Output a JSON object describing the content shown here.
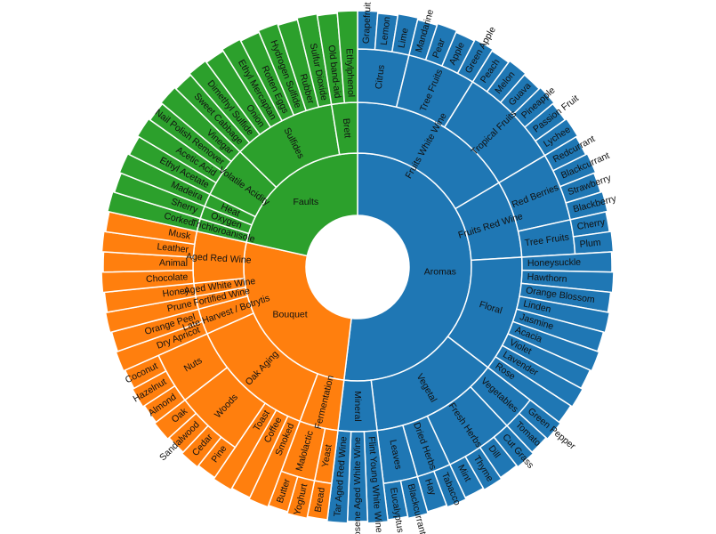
{
  "chart_data": {
    "type": "sunburst",
    "colors": {
      "Aromas": "#1f77b4",
      "Bouquet": "#ff7f0e",
      "Faults": "#2ca02c"
    },
    "tree": [
      {
        "name": "Aromas",
        "color": "#1f77b4",
        "children": [
          {
            "name": "Fruits White Wine",
            "children": [
              {
                "name": "Citrus",
                "children": [
                  {
                    "name": "Grapefruit",
                    "value": 1
                  },
                  {
                    "name": "Lemon",
                    "value": 1
                  },
                  {
                    "name": "Lime",
                    "value": 1
                  }
                ]
              },
              {
                "name": "Tree Fruits",
                "children": [
                  {
                    "name": "Mandarine",
                    "value": 1
                  },
                  {
                    "name": "Pear",
                    "value": 1
                  },
                  {
                    "name": "Apple",
                    "value": 1
                  },
                  {
                    "name": "Green Apple",
                    "value": 1
                  }
                ]
              },
              {
                "name": "Tropical Fruits",
                "children": [
                  {
                    "name": "Peach",
                    "value": 1
                  },
                  {
                    "name": "Melon",
                    "value": 1
                  },
                  {
                    "name": "Guava",
                    "value": 1
                  },
                  {
                    "name": "Pineapple",
                    "value": 1
                  },
                  {
                    "name": "Passion Fruit",
                    "value": 1
                  },
                  {
                    "name": "Lychee",
                    "value": 1
                  }
                ]
              }
            ]
          },
          {
            "name": "Fruits Red Wine",
            "children": [
              {
                "name": "Red Berries",
                "children": [
                  {
                    "name": "Redcurrant",
                    "value": 1
                  },
                  {
                    "name": "Blackcurrant",
                    "value": 1
                  },
                  {
                    "name": "Strawberry",
                    "value": 1
                  },
                  {
                    "name": "Blackberry",
                    "value": 1
                  }
                ]
              },
              {
                "name": "Tree Fruits",
                "children": [
                  {
                    "name": "Cherry",
                    "value": 1
                  },
                  {
                    "name": "Plum",
                    "value": 1
                  }
                ]
              }
            ]
          },
          {
            "name": "Floral",
            "children": [
              {
                "name": "Honeysuckle",
                "value": 1
              },
              {
                "name": "Hawthorn",
                "value": 1
              },
              {
                "name": "Orange Blossom",
                "value": 1
              },
              {
                "name": "Linden",
                "value": 1
              },
              {
                "name": "Jasmine",
                "value": 1
              },
              {
                "name": "Acacia",
                "value": 1
              },
              {
                "name": "Violet",
                "value": 1
              },
              {
                "name": "Lavender",
                "value": 1
              },
              {
                "name": "Rose",
                "value": 1
              }
            ]
          },
          {
            "name": "Vegetal",
            "children": [
              {
                "name": "Vegetables",
                "children": [
                  {
                    "name": "Green Pepper",
                    "value": 1
                  },
                  {
                    "name": "Tomato",
                    "value": 1
                  }
                ]
              },
              {
                "name": "Fresh Herbs",
                "children": [
                  {
                    "name": "Cut Grass",
                    "value": 1
                  },
                  {
                    "name": "Dill",
                    "value": 1
                  },
                  {
                    "name": "Thyme",
                    "value": 1
                  },
                  {
                    "name": "Mint",
                    "value": 1
                  }
                ]
              },
              {
                "name": "Dried Herbs",
                "children": [
                  {
                    "name": "Tabacco",
                    "value": 1
                  },
                  {
                    "name": "Hay",
                    "value": 1
                  }
                ]
              },
              {
                "name": "Leaves",
                "children": [
                  {
                    "name": "Blackcurrant Leaf",
                    "value": 1
                  },
                  {
                    "name": "Eucalyptus",
                    "value": 1
                  }
                ]
              }
            ]
          },
          {
            "name": "Mineral",
            "children": [
              {
                "name": "Flint Young White Wine",
                "value": 1
              },
              {
                "name": "Kerosene Aged White Wine",
                "value": 1
              },
              {
                "name": "Tar Aged Red Wine",
                "value": 1
              }
            ]
          }
        ]
      },
      {
        "name": "Bouquet",
        "color": "#ff7f0e",
        "children": [
          {
            "name": "Fermentation",
            "children": [
              {
                "name": "Yeast",
                "children": [
                  {
                    "name": "Bread",
                    "value": 1
                  }
                ]
              },
              {
                "name": "Malolactic",
                "children": [
                  {
                    "name": "Yoghurt",
                    "value": 1
                  },
                  {
                    "name": "Butter",
                    "value": 1
                  }
                ]
              }
            ]
          },
          {
            "name": "Oak Aging",
            "children": [
              {
                "name": "Smoked",
                "value": 1
              },
              {
                "name": "Coffee",
                "value": 1
              },
              {
                "name": "Toast",
                "value": 1
              },
              {
                "name": "Woods",
                "children": [
                  {
                    "name": "Pine",
                    "value": 1
                  },
                  {
                    "name": "Cedar",
                    "value": 1
                  },
                  {
                    "name": "Sandalwood",
                    "value": 1
                  },
                  {
                    "name": "Oak",
                    "value": 1
                  }
                ]
              },
              {
                "name": "Nuts",
                "children": [
                  {
                    "name": "Almond",
                    "value": 1
                  },
                  {
                    "name": "Hazelnut",
                    "value": 1
                  },
                  {
                    "name": "Coconut",
                    "value": 1
                  }
                ]
              }
            ]
          },
          {
            "name": "Late Harvest / Botrytis",
            "children": [
              {
                "name": "Dry Apricot",
                "value": 1
              },
              {
                "name": "Orange Peel",
                "value": 1
              }
            ]
          },
          {
            "name": "Fortified Wine",
            "children": [
              {
                "name": "Prune",
                "value": 1
              }
            ]
          },
          {
            "name": "Aged White Wine",
            "children": [
              {
                "name": "Honey",
                "value": 1
              }
            ]
          },
          {
            "name": "Aged Red Wine",
            "children": [
              {
                "name": "Chocolate",
                "value": 1
              },
              {
                "name": "Animal",
                "value": 1
              },
              {
                "name": "Leather",
                "value": 1
              },
              {
                "name": "Musk",
                "value": 1
              }
            ]
          }
        ]
      },
      {
        "name": "Faults",
        "color": "#2ca02c",
        "children": [
          {
            "name": "Trichloroanisole",
            "children": [
              {
                "name": "Corked",
                "value": 1
              }
            ]
          },
          {
            "name": "Oxygen",
            "children": [
              {
                "name": "Sherry",
                "value": 1
              }
            ]
          },
          {
            "name": "Heat",
            "children": [
              {
                "name": "Madeira",
                "value": 1
              }
            ]
          },
          {
            "name": "Volatile Acidity",
            "children": [
              {
                "name": "Ethyl Acetate",
                "value": 1
              },
              {
                "name": "Acetic Acid",
                "value": 1
              },
              {
                "name": "Nail Polish Remover",
                "value": 1
              },
              {
                "name": "Vinegar",
                "value": 1
              }
            ]
          },
          {
            "name": "Sulfides",
            "children": [
              {
                "name": "Sweet Cabbage",
                "value": 1
              },
              {
                "name": "Dimethyl Sulfide",
                "value": 1
              },
              {
                "name": "Onion",
                "value": 1
              },
              {
                "name": "Ethyl Mercaptan",
                "value": 1
              },
              {
                "name": "Rotten Eggs",
                "value": 1
              },
              {
                "name": "Hydrogen Sulfide",
                "value": 1
              },
              {
                "name": "Rubber",
                "value": 1
              },
              {
                "name": "Sulfur Dioxide",
                "value": 1
              }
            ]
          },
          {
            "name": "Brett",
            "children": [
              {
                "name": "Old band-aid",
                "value": 1
              },
              {
                "name": "Ethylphenol",
                "value": 1
              }
            ]
          }
        ]
      }
    ]
  }
}
